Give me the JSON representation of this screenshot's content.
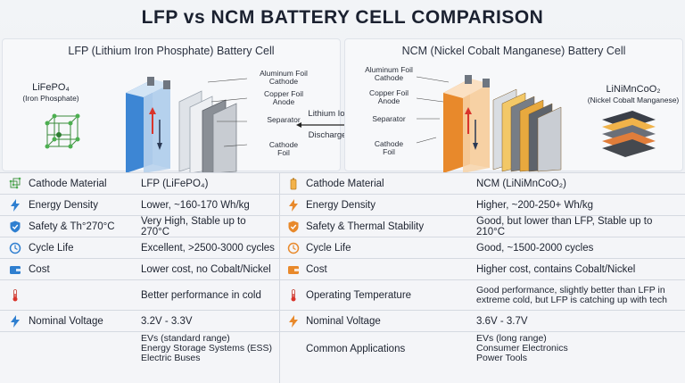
{
  "title": "LFP vs NCM BATTERY CELL COMPARISON",
  "lfp_panel": {
    "heading": "LFP (Lithium Iron Phosphate) Battery Cell",
    "formula": "LiFePO₄",
    "formula_sub": "(Iron Phosphate)",
    "callouts": {
      "aluminum_foil": "Aluminum Foil",
      "cathode": "Cathode",
      "copper_foil": "Copper Foil",
      "anode": "Anode",
      "separator": "Separator",
      "cathode_foil_1": "Cathode",
      "cathode_foil_2": "Foil"
    },
    "colors": {
      "accent": "#2f7fd0"
    }
  },
  "flow_labels": {
    "lithium_ion_flow": "Lithium Ion Flow",
    "discharge_flow": "Discharger Flow"
  },
  "ncm_panel": {
    "heading": "NCM (Nickel Cobalt Manganese) Battery Cell",
    "formula": "LiNiMnCoO₂",
    "formula_sub": "(Nickel Cobalt Manganese)",
    "callouts": {
      "aluminum_foil": "Aluminum Foil",
      "cathode": "Cathode",
      "copper_foil": "Copper Foil",
      "anode": "Anode",
      "separator": "Separator",
      "cathode_foil_1": "Cathode",
      "cathode_foil_2": "Foil"
    },
    "colors": {
      "accent": "#e8892b"
    }
  },
  "table": {
    "rows": [
      {
        "lfp_label": "Cathode Material",
        "lfp_value": "LFP (LiFePO₄)",
        "ncm_label": "Cathode Material",
        "ncm_value": "NCM (LiNiMnCoO₂)",
        "lfp_icon": "lattice-icon",
        "ncm_icon": "battery-icon"
      },
      {
        "lfp_label": "Energy Density",
        "lfp_value": "Lower, ~160-170 Wh/kg",
        "ncm_label": "Energy Density",
        "ncm_value": "Higher, ~200-250+ Wh/kg",
        "lfp_icon": "bolt-icon",
        "ncm_icon": "bolt-icon"
      },
      {
        "lfp_label": "Safety & Th°270°C",
        "lfp_value": "Very High, Stable up to 270°C",
        "ncm_label": "Safety & Thermal Stability",
        "ncm_value": "Good, but lower than LFP, Stable up to 210°C",
        "lfp_icon": "shield-check-icon",
        "ncm_icon": "shield-check-icon"
      },
      {
        "lfp_label": "Cycle Life",
        "lfp_value": "Excellent, >2500-3000 cycles",
        "ncm_label": "Cycle Life",
        "ncm_value": "Good, ~1500-2000 cycles",
        "lfp_icon": "cycle-icon",
        "ncm_icon": "cycle-icon"
      },
      {
        "lfp_label": "Cost",
        "lfp_value": "Lower cost, no Cobalt/Nickel",
        "ncm_label": "Cost",
        "ncm_value": "Higher cost, contains Cobalt/Nickel",
        "lfp_icon": "wallet-icon",
        "ncm_icon": "wallet-icon"
      },
      {
        "lfp_label": "",
        "lfp_value": "Better performance in cold",
        "ncm_label": "Operating Temperature",
        "ncm_value_1": "Good performance, slightly better than LFP in",
        "ncm_value_2": "extreme cold, but LFP is catching up with tech",
        "lfp_icon": "thermometer-icon",
        "ncm_icon": "thermometer-icon"
      },
      {
        "lfp_label": "Nominal Voltage",
        "lfp_value": "3.2V - 3.3V",
        "ncm_label": "Nominal Voltage",
        "ncm_value": "3.6V - 3.7V",
        "lfp_icon": "bolt-icon",
        "ncm_icon": "bolt-icon"
      },
      {
        "lfp_label": "",
        "lfp_value_1": "EVs (standard range)",
        "lfp_value_2": "Energy Storage Systems (ESS)",
        "lfp_value_3": "Electric Buses",
        "ncm_label": "Common Applications",
        "ncm_value_1": "EVs (long range)",
        "ncm_value_2": "Consumer Electronics",
        "ncm_value_3": "Power Tools"
      }
    ]
  }
}
